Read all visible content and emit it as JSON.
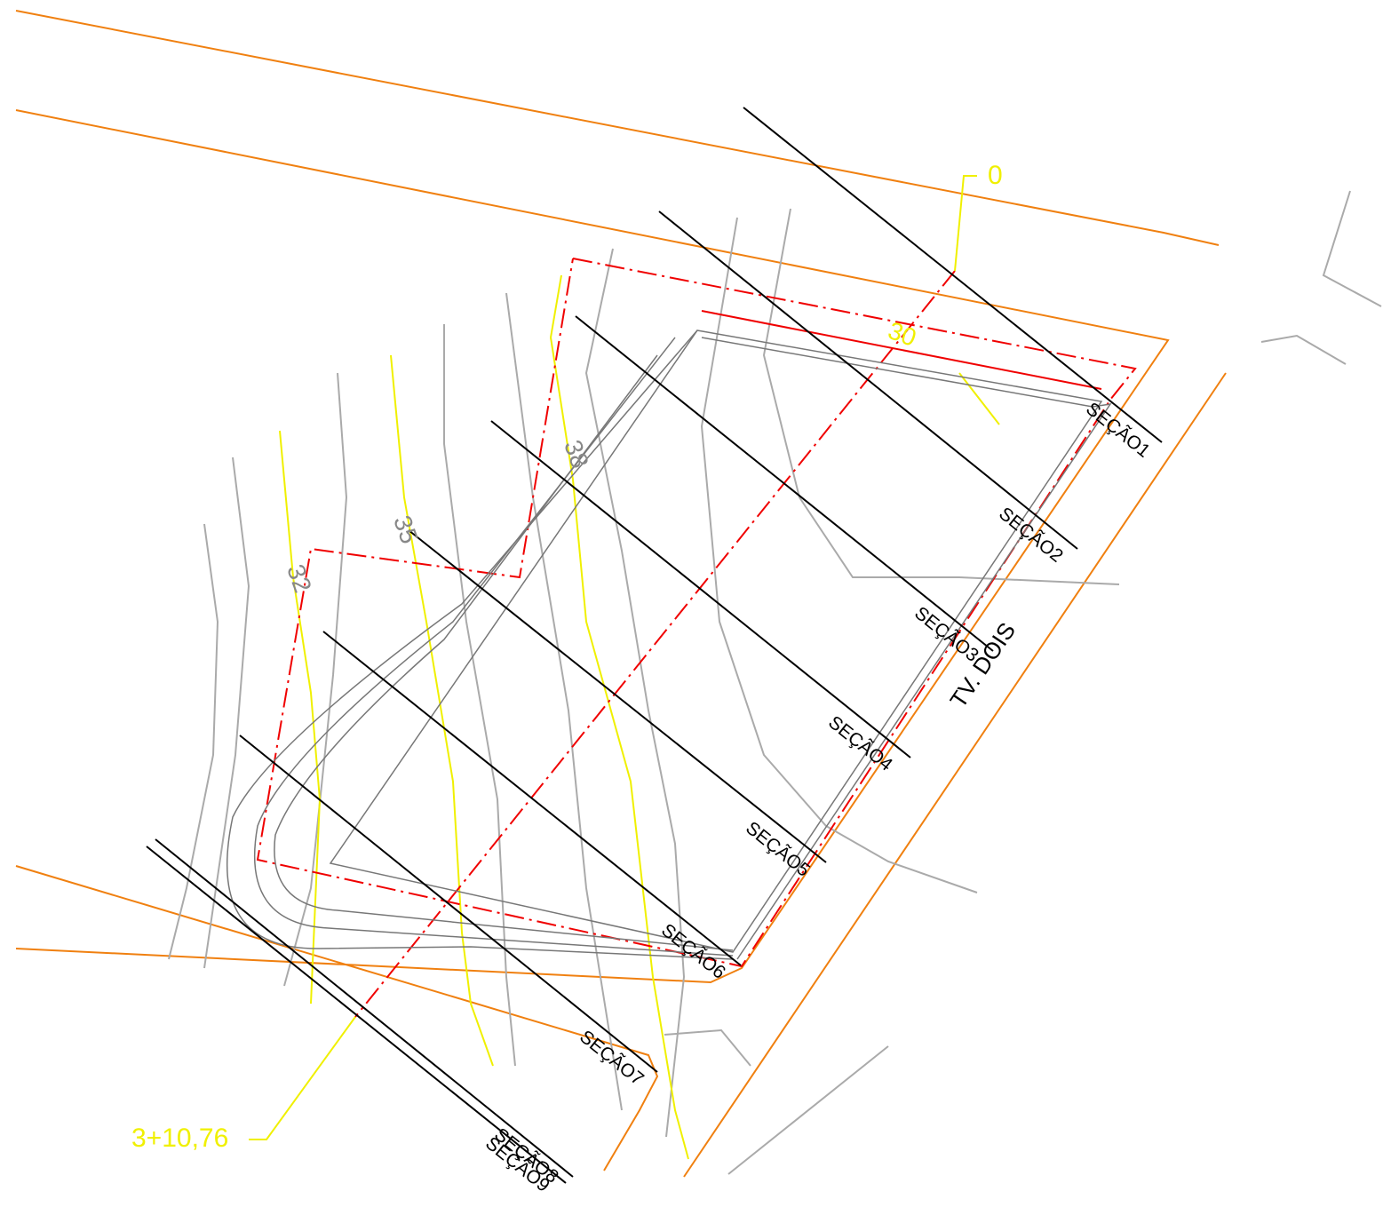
{
  "drawing": {
    "stations": {
      "start": "0",
      "end": "3+10,76"
    },
    "street": "TV. DOIS",
    "contours": [
      "38",
      "35",
      "32",
      "30"
    ],
    "sections": [
      "SEÇÃO1",
      "SEÇÃO2",
      "SEÇÃO3",
      "SEÇÃO4",
      "SEÇÃO5",
      "SEÇÃO6",
      "SEÇÃO7",
      "SEÇÃO8",
      "SEÇÃO9"
    ]
  }
}
